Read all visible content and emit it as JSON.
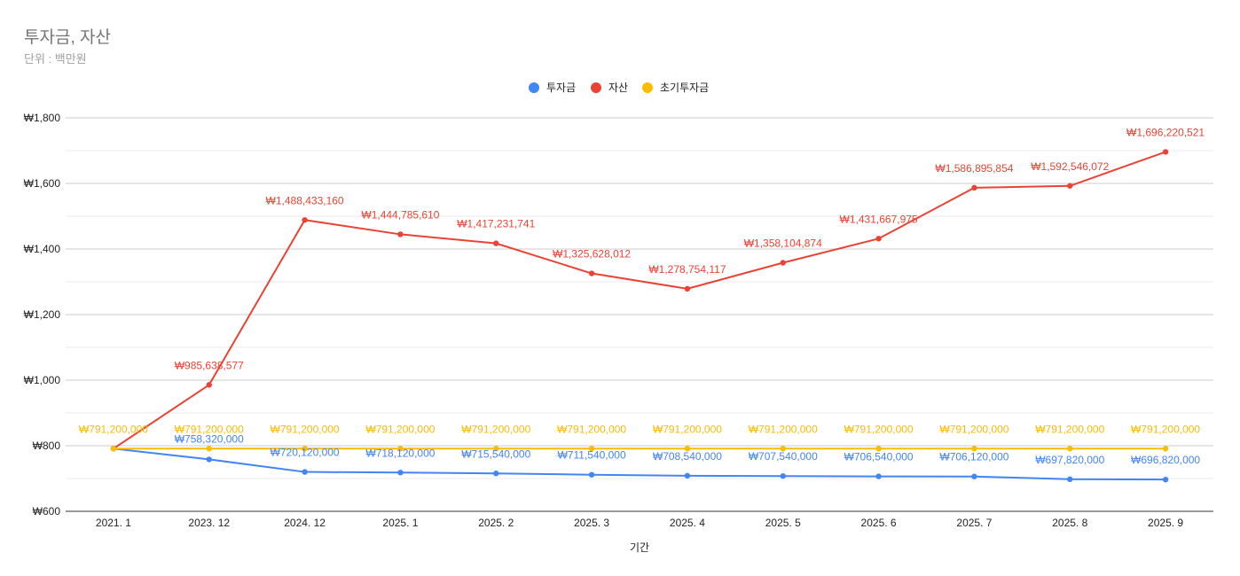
{
  "title": "투자금, 자산",
  "subtitle": "단위 : 백만원",
  "chart_data": {
    "type": "line",
    "title": "투자금, 자산",
    "subtitle": "단위 : 백만원",
    "xlabel": "기간",
    "ylabel": "",
    "ylim": [
      600,
      1800
    ],
    "yticks": [
      600,
      800,
      1000,
      1200,
      1400,
      1600,
      1800
    ],
    "ytick_labels": [
      "₩600",
      "₩800",
      "₩1,000",
      "₩1,200",
      "₩1,400",
      "₩1,600",
      "₩1,800"
    ],
    "legend_position": "top-center",
    "categories": [
      "2021. 1",
      "2023. 12",
      "2024. 12",
      "2025. 1",
      "2025. 2",
      "2025. 3",
      "2025. 4",
      "2025. 5",
      "2025. 6",
      "2025. 7",
      "2025. 8",
      "2025. 9"
    ],
    "series": [
      {
        "name": "투자금",
        "color": "#4285f4",
        "values": [
          791.2,
          758.32,
          720.12,
          718.12,
          715.54,
          711.54,
          708.54,
          707.54,
          706.54,
          706.12,
          697.82,
          696.82
        ],
        "labels": [
          "",
          "₩758,320,000",
          "₩720,120,000",
          "₩718,120,000",
          "₩715,540,000",
          "₩711,540,000",
          "₩708,540,000",
          "₩707,540,000",
          "₩706,540,000",
          "₩706,120,000",
          "₩697,820,000",
          "₩696,820,000"
        ]
      },
      {
        "name": "자산",
        "color": "#ea4335",
        "values": [
          791.2,
          985.638577,
          1488.43316,
          1444.78561,
          1417.231741,
          1325.628012,
          1278.754117,
          1358.104874,
          1431.667975,
          1586.895854,
          1592.546072,
          1696.220521
        ],
        "labels": [
          "",
          "₩985,638,577",
          "₩1,488,433,160",
          "₩1,444,785,610",
          "₩1,417,231,741",
          "₩1,325,628,012",
          "₩1,278,754,117",
          "₩1,358,104,874",
          "₩1,431,667,975",
          "₩1,586,895,854",
          "₩1,592,546,072",
          "₩1,696,220,521"
        ]
      },
      {
        "name": "초기투자금",
        "color": "#fbbc04",
        "values": [
          791.2,
          791.2,
          791.2,
          791.2,
          791.2,
          791.2,
          791.2,
          791.2,
          791.2,
          791.2,
          791.2,
          791.2
        ],
        "labels": [
          "₩791,200,000",
          "₩791,200,000",
          "₩791,200,000",
          "₩791,200,000",
          "₩791,200,000",
          "₩791,200,000",
          "₩791,200,000",
          "₩791,200,000",
          "₩791,200,000",
          "₩791,200,000",
          "₩791,200,000",
          "₩791,200,000"
        ]
      }
    ]
  }
}
